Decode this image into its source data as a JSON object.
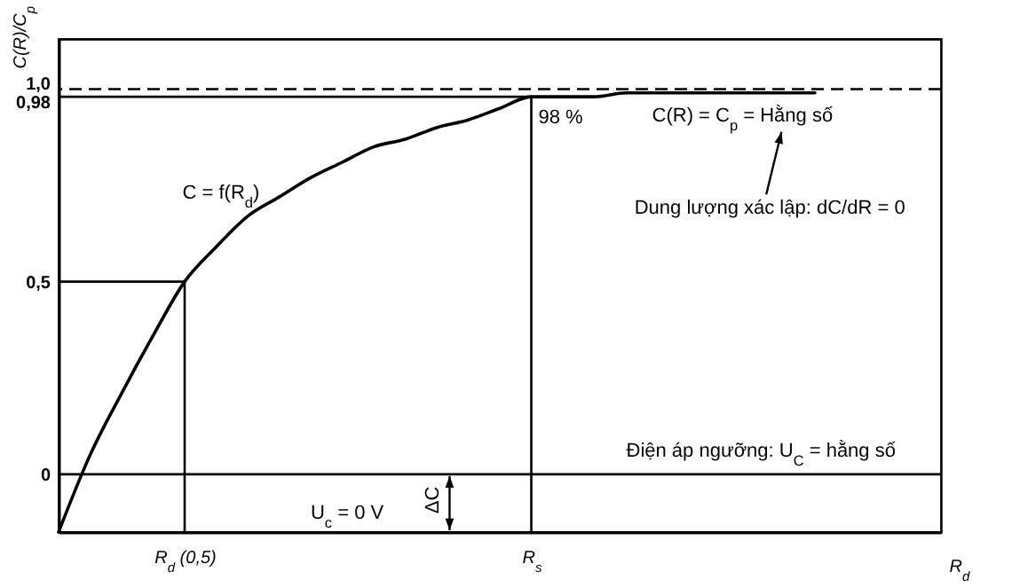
{
  "chart_data": {
    "type": "line",
    "ylabel": "C(R)/C$_{p}$",
    "xlabel": "R$_{d}$",
    "categories": [
      null,
      null,
      null,
      null,
      "R$_{d}$ (0,5)",
      null,
      null,
      null,
      null,
      null,
      null,
      null,
      null,
      null,
      null,
      "R$_{s}$",
      null,
      null,
      null,
      null,
      null,
      null,
      null,
      null,
      null,
      null,
      null,
      null,
      null
    ],
    "ylim": [
      -0.15,
      1.13
    ],
    "yticks": [
      0,
      {
        "value": 0.5,
        "label": "0,5"
      },
      {
        "value": 0.98,
        "label": "0,98"
      },
      {
        "value": 1,
        "label": "1,0"
      }
    ],
    "grid": false,
    "line_style": "solid",
    "series": [
      {
        "color": "#000000",
        "values": [
          -0.15,
          0.05,
          0.21,
          0.36,
          0.5,
          0.59,
          0.67,
          0.72,
          0.77,
          0.81,
          0.85,
          0.87,
          0.9,
          0.92,
          0.95,
          0.98,
          0.98,
          0.98,
          0.99,
          0.99,
          0.99,
          0.99,
          0.99,
          0.99,
          0.99,
          null,
          null,
          null,
          null
        ]
      }
    ],
    "ref_lines": [
      {
        "axis": "y",
        "value": 0,
        "color": "#000000",
        "line_style": "solid"
      },
      {
        "axis": "y",
        "value": 1,
        "color": "#000000",
        "line_style": "dashed"
      },
      {
        "axis": "y",
        "value": 0.5,
        "color": "#000000",
        "line_style": "solid"
      },
      {
        "axis": "y",
        "value": 0.98,
        "color": "#000000",
        "line_style": "solid"
      },
      {
        "axis": "x",
        "value": "R$_{d}$ (0,5)",
        "color": "#000000",
        "line_style": "solid"
      },
      {
        "axis": "x",
        "value": "R$_{s}$",
        "color": "#000000",
        "line_style": "solid"
      }
    ],
    "annotations": [
      "C(R) = C$_{p}$ = Hằng số",
      "Dung lượng xác lập: dC/dR = 0",
      "C = f(R$_{d}$)",
      {
        "text": "98 %",
        "x": "R$_{s}$",
        "y": 0.98
      },
      "ΔC",
      "U$_{c}$ = 0 V",
      "Điện áp ngưỡng: U$_{C}$ = hằng số"
    ]
  }
}
